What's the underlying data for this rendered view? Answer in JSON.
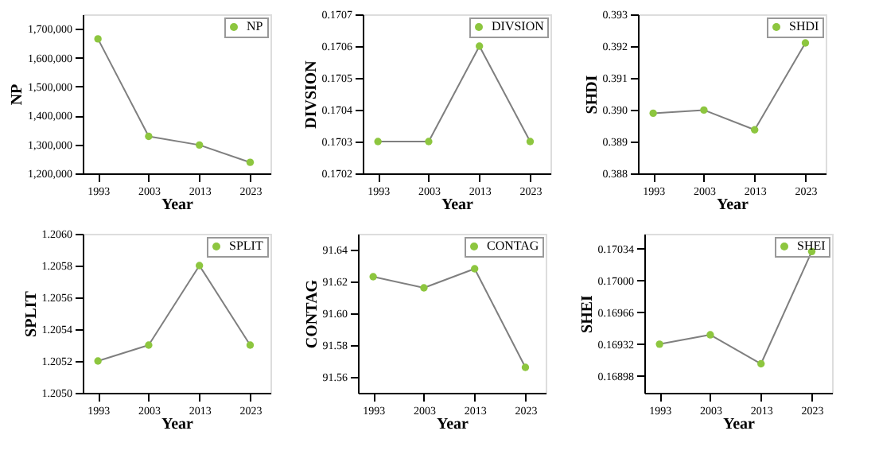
{
  "chart_data": [
    {
      "type": "line",
      "xlabel": "Year",
      "ylabel": "NP",
      "x": [
        1993,
        2003,
        2013,
        2023
      ],
      "xlim": [
        1990,
        2027
      ],
      "xticks": [
        1993,
        2003,
        2013,
        2023
      ],
      "ylim": [
        1200000,
        1750000
      ],
      "yticks": [
        {
          "value": 1200000,
          "label": "1,200,000"
        },
        {
          "value": 1300000,
          "label": "1,300,000"
        },
        {
          "value": 1400000,
          "label": "1,400,000"
        },
        {
          "value": 1500000,
          "label": "1,500,000"
        },
        {
          "value": 1600000,
          "label": "1,600,000"
        },
        {
          "value": 1700000,
          "label": "1,700,000"
        }
      ],
      "marker": "circle",
      "legend": "top right",
      "grid": false,
      "series": [
        {
          "name": "NP",
          "color": "#8dc63f",
          "values": [
            1665000,
            1328000,
            1298000,
            1238000
          ]
        }
      ]
    },
    {
      "type": "line",
      "xlabel": "Year",
      "ylabel": "DIVSION",
      "x": [
        1993,
        2003,
        2013,
        2023
      ],
      "xlim": [
        1990,
        2027
      ],
      "xticks": [
        1993,
        2003,
        2013,
        2023
      ],
      "ylim": [
        0.1702,
        0.1707
      ],
      "yticks": [
        0.1702,
        0.1703,
        0.1704,
        0.1705,
        0.1706,
        0.1707
      ],
      "marker": "circle",
      "legend": "top right",
      "grid": false,
      "series": [
        {
          "name": "DIVSION",
          "color": "#8dc63f",
          "values": [
            0.1703,
            0.1703,
            0.1706,
            0.1703
          ]
        }
      ]
    },
    {
      "type": "line",
      "xlabel": "Year",
      "ylabel": "SHDI",
      "x": [
        1993,
        2003,
        2013,
        2023
      ],
      "xlim": [
        1990,
        2027
      ],
      "xticks": [
        1993,
        2003,
        2013,
        2023
      ],
      "ylim": [
        0.388,
        0.393
      ],
      "yticks": [
        0.388,
        0.389,
        {
          "value": 0.39,
          "label": "0.390"
        },
        0.391,
        0.392,
        0.393
      ],
      "marker": "circle",
      "legend": "top right",
      "grid": false,
      "series": [
        {
          "name": "SHDI",
          "color": "#8dc63f",
          "values": [
            0.38989,
            0.38999,
            0.38937,
            0.3921
          ]
        }
      ]
    },
    {
      "type": "line",
      "xlabel": "Year",
      "ylabel": "SPLIT",
      "x": [
        1993,
        2003,
        2013,
        2023
      ],
      "xlim": [
        1990,
        2027
      ],
      "xticks": [
        1993,
        2003,
        2013,
        2023
      ],
      "ylim": [
        1.205,
        1.206
      ],
      "yticks": [
        {
          "value": 1.205,
          "label": "1.2050"
        },
        1.2052,
        1.2054,
        1.2056,
        1.2058,
        {
          "value": 1.206,
          "label": "1.2060"
        }
      ],
      "marker": "circle",
      "legend": "top right",
      "grid": false,
      "series": [
        {
          "name": "SPLIT",
          "color": "#8dc63f",
          "values": [
            1.2052,
            1.2053,
            1.2058,
            1.2053
          ]
        }
      ]
    },
    {
      "type": "line",
      "xlabel": "Year",
      "ylabel": "CONTAG",
      "x": [
        1993,
        2003,
        2013,
        2023
      ],
      "xlim": [
        1990,
        2027
      ],
      "xticks": [
        1993,
        2003,
        2013,
        2023
      ],
      "ylim": [
        91.55,
        91.65
      ],
      "yticks": [
        91.56,
        91.58,
        {
          "value": 91.6,
          "label": "91.60"
        },
        91.62,
        91.64
      ],
      "marker": "circle",
      "legend": "top right",
      "grid": false,
      "series": [
        {
          "name": "CONTAG",
          "color": "#8dc63f",
          "values": [
            91.623,
            91.616,
            91.628,
            91.566
          ]
        }
      ]
    },
    {
      "type": "line",
      "xlabel": "Year",
      "ylabel": "SHEI",
      "x": [
        1993,
        2003,
        2013,
        2023
      ],
      "xlim": [
        1990,
        2027
      ],
      "xticks": [
        1993,
        2003,
        2013,
        2023
      ],
      "ylim": [
        0.1688,
        0.1705
      ],
      "yticks": [
        0.16898,
        0.16932,
        0.16966,
        {
          "value": 0.17,
          "label": "0.17000"
        },
        0.17034
      ],
      "marker": "circle",
      "legend": "top right",
      "grid": false,
      "series": [
        {
          "name": "SHEI",
          "color": "#8dc63f",
          "values": [
            0.16932,
            0.16942,
            0.16911,
            0.17031
          ]
        }
      ]
    }
  ]
}
